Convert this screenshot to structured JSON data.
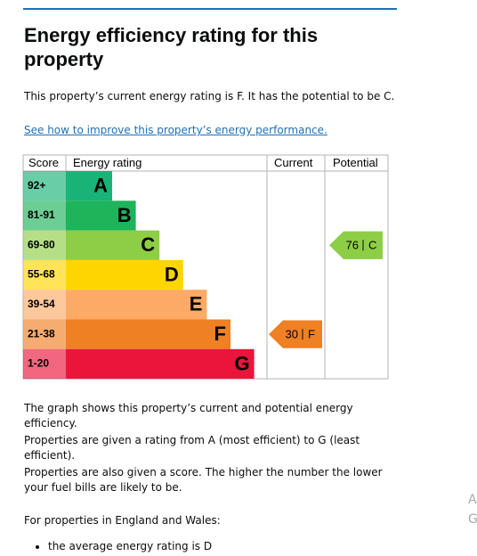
{
  "heading": "Energy efficiency rating for this property",
  "summary": "This property’s current energy rating is F. It has the potential to be C.",
  "link": "See how to improve this property’s energy performance.",
  "graph": {
    "headers": [
      "Score",
      "Energy rating",
      "Current",
      "Potential"
    ],
    "bands": [
      {
        "score": "92+",
        "letter": "A",
        "color": "#19b378"
      },
      {
        "score": "81-91",
        "letter": "B",
        "color": "#1db45a"
      },
      {
        "score": "69-80",
        "letter": "C",
        "color": "#8dce46"
      },
      {
        "score": "55-68",
        "letter": "D",
        "color": "#ffd500"
      },
      {
        "score": "39-54",
        "letter": "E",
        "color": "#fcaa65"
      },
      {
        "score": "21-38",
        "letter": "F",
        "color": "#ef8023"
      },
      {
        "score": "1-20",
        "letter": "G",
        "color": "#e9153b"
      }
    ],
    "current": {
      "score": 30,
      "rating": "F"
    },
    "potential": {
      "score": 76,
      "rating": "C"
    }
  },
  "paragraphs": [
    "The graph shows this property’s current and potential energy efficiency.",
    "Properties are given a rating from A (most efficient) to G (least efficient).",
    "Properties are also given a score. The higher the number the lower your fuel bills are likely to be.",
    "For properties in England and Wales:"
  ],
  "bullets": [
    "the average energy rating is D"
  ],
  "edge_text": [
    "A",
    "G"
  ]
}
